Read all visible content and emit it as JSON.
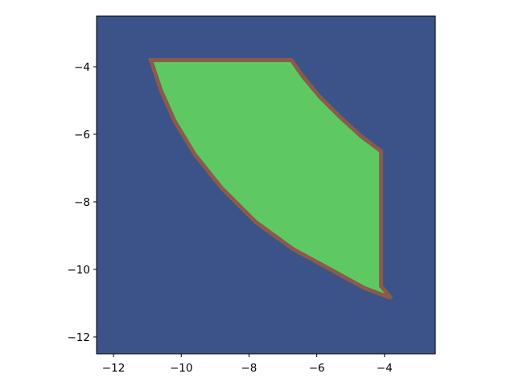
{
  "chart_data": {
    "type": "area",
    "title": "",
    "xlabel": "",
    "ylabel": "",
    "xlim": [
      -12.5,
      -2.5
    ],
    "ylim": [
      -12.5,
      -2.5
    ],
    "grid": false,
    "legend": "none",
    "background_color": "#3b5388",
    "fill_color": "#5ec962",
    "edge_color": "#8b5a4a",
    "xticks": [
      -12,
      -10,
      -8,
      -6,
      -4
    ],
    "yticks": [
      -12,
      -10,
      -8,
      -6,
      -4
    ],
    "xtick_labels": [
      "−12",
      "−10",
      "−8",
      "−6",
      "−4"
    ],
    "ytick_labels": [
      "−12",
      "−10",
      "−8",
      "−6",
      "−4"
    ],
    "polygon": [
      [
        -10.9,
        -3.8
      ],
      [
        -6.75,
        -3.8
      ],
      [
        -6.4,
        -4.3
      ],
      [
        -5.9,
        -4.9
      ],
      [
        -5.3,
        -5.5
      ],
      [
        -4.7,
        -6.05
      ],
      [
        -4.1,
        -6.5
      ],
      [
        -4.1,
        -10.5
      ],
      [
        -3.8,
        -10.85
      ],
      [
        -4.6,
        -10.55
      ],
      [
        -5.6,
        -10.0
      ],
      [
        -6.7,
        -9.4
      ],
      [
        -7.8,
        -8.6
      ],
      [
        -8.8,
        -7.6
      ],
      [
        -9.6,
        -6.6
      ],
      [
        -10.2,
        -5.6
      ],
      [
        -10.6,
        -4.7
      ],
      [
        -10.9,
        -3.8
      ]
    ]
  }
}
